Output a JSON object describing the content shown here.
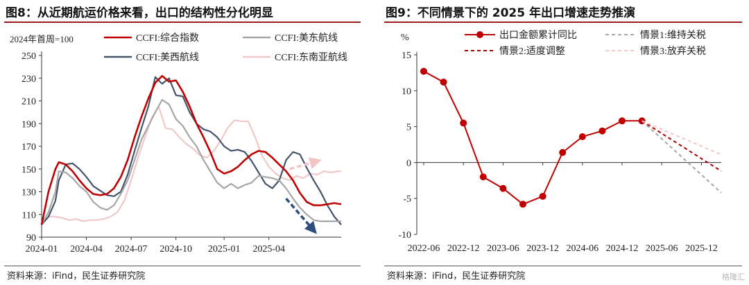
{
  "left": {
    "title": "图8：从近期航运价格来看，出口的结构性分化明显",
    "source": "资料来源：iFind，民生证券研究院",
    "chart_data": {
      "type": "line",
      "subtitle": "2024年首周=100",
      "ylim": [
        90,
        250
      ],
      "yticks": [
        90,
        110,
        130,
        150,
        170,
        190,
        210,
        230,
        250
      ],
      "xticks": [
        {
          "label": "2024-01",
          "t": 0
        },
        {
          "label": "2024-04",
          "t": 13
        },
        {
          "label": "2024-07",
          "t": 26
        },
        {
          "label": "2024-10",
          "t": 39
        },
        {
          "label": "2025-01",
          "t": 53
        },
        {
          "label": "2025-04",
          "t": 66
        }
      ],
      "x_unit": "weeks since first week of 2024",
      "legend_position": "top",
      "series": [
        {
          "name": "CCFI:综合指数",
          "color": "#c00000",
          "width": 2.6,
          "points": [
            [
              0,
              101
            ],
            [
              2,
              130
            ],
            [
              4,
              150
            ],
            [
              5,
              156
            ],
            [
              7,
              154
            ],
            [
              9,
              148
            ],
            [
              11,
              140
            ],
            [
              13,
              133
            ],
            [
              15,
              128
            ],
            [
              17,
              127
            ],
            [
              19,
              128
            ],
            [
              21,
              133
            ],
            [
              23,
              143
            ],
            [
              25,
              158
            ],
            [
              27,
              178
            ],
            [
              29,
              196
            ],
            [
              31,
              212
            ],
            [
              33,
              226
            ],
            [
              35,
              232
            ],
            [
              37,
              227
            ],
            [
              39,
              228
            ],
            [
              41,
              218
            ],
            [
              43,
              205
            ],
            [
              45,
              190
            ],
            [
              47,
              178
            ],
            [
              49,
              165
            ],
            [
              51,
              150
            ],
            [
              53,
              146
            ],
            [
              55,
              148
            ],
            [
              57,
              152
            ],
            [
              59,
              158
            ],
            [
              61,
              163
            ],
            [
              63,
              166
            ],
            [
              65,
              165
            ],
            [
              67,
              160
            ],
            [
              69,
              154
            ],
            [
              71,
              148
            ],
            [
              73,
              140
            ],
            [
              75,
              129
            ],
            [
              77,
              121
            ],
            [
              79,
              118
            ],
            [
              81,
              118
            ],
            [
              83,
              119
            ],
            [
              85,
              120
            ],
            [
              87,
              119
            ]
          ]
        },
        {
          "name": "CCFI:美东航线",
          "color": "#a6a6a6",
          "width": 2.2,
          "points": [
            [
              0,
              101
            ],
            [
              2,
              112
            ],
            [
              4,
              130
            ],
            [
              5,
              148
            ],
            [
              7,
              147
            ],
            [
              9,
              142
            ],
            [
              11,
              135
            ],
            [
              13,
              130
            ],
            [
              15,
              121
            ],
            [
              17,
              116
            ],
            [
              19,
              114
            ],
            [
              21,
              118
            ],
            [
              23,
              128
            ],
            [
              25,
              140
            ],
            [
              27,
              158
            ],
            [
              29,
              176
            ],
            [
              31,
              188
            ],
            [
              33,
              200
            ],
            [
              35,
              211
            ],
            [
              37,
              207
            ],
            [
              39,
              194
            ],
            [
              41,
              188
            ],
            [
              43,
              178
            ],
            [
              45,
              170
            ],
            [
              47,
              158
            ],
            [
              49,
              148
            ],
            [
              51,
              138
            ],
            [
              53,
              133
            ],
            [
              55,
              137
            ],
            [
              57,
              133
            ],
            [
              59,
              136
            ],
            [
              61,
              138
            ],
            [
              63,
              144
            ],
            [
              65,
              143
            ],
            [
              67,
              142
            ],
            [
              69,
              140
            ],
            [
              71,
              133
            ],
            [
              73,
              124
            ],
            [
              75,
              116
            ],
            [
              77,
              110
            ],
            [
              79,
              105
            ],
            [
              81,
              104
            ],
            [
              83,
              104
            ],
            [
              85,
              104
            ],
            [
              87,
              104
            ]
          ]
        },
        {
          "name": "CCFI:美西航线",
          "color": "#44546a",
          "width": 2.2,
          "points": [
            [
              0,
              101
            ],
            [
              2,
              108
            ],
            [
              4,
              122
            ],
            [
              5,
              140
            ],
            [
              7,
              154
            ],
            [
              9,
              155
            ],
            [
              11,
              150
            ],
            [
              13,
              143
            ],
            [
              15,
              135
            ],
            [
              17,
              131
            ],
            [
              19,
              127
            ],
            [
              21,
              126
            ],
            [
              23,
              130
            ],
            [
              25,
              145
            ],
            [
              27,
              166
            ],
            [
              29,
              186
            ],
            [
              31,
              205
            ],
            [
              33,
              231
            ],
            [
              35,
              225
            ],
            [
              37,
              230
            ],
            [
              39,
              215
            ],
            [
              41,
              214
            ],
            [
              43,
              200
            ],
            [
              45,
              190
            ],
            [
              47,
              185
            ],
            [
              49,
              183
            ],
            [
              51,
              178
            ],
            [
              53,
              170
            ],
            [
              55,
              166
            ],
            [
              57,
              167
            ],
            [
              59,
              165
            ],
            [
              61,
              157
            ],
            [
              63,
              147
            ],
            [
              65,
              137
            ],
            [
              67,
              133
            ],
            [
              69,
              140
            ],
            [
              71,
              158
            ],
            [
              73,
              165
            ],
            [
              75,
              163
            ],
            [
              77,
              151
            ],
            [
              79,
              140
            ],
            [
              81,
              130
            ],
            [
              83,
              118
            ],
            [
              85,
              108
            ],
            [
              87,
              101
            ]
          ]
        },
        {
          "name": "CCFI:东南亚航线",
          "color": "#f0c8c8",
          "width": 2.2,
          "points": [
            [
              0,
              101
            ],
            [
              2,
              108
            ],
            [
              4,
              108
            ],
            [
              6,
              107
            ],
            [
              8,
              105
            ],
            [
              10,
              106
            ],
            [
              12,
              104
            ],
            [
              14,
              105
            ],
            [
              16,
              105
            ],
            [
              18,
              106
            ],
            [
              20,
              108
            ],
            [
              22,
              112
            ],
            [
              24,
              122
            ],
            [
              26,
              140
            ],
            [
              28,
              160
            ],
            [
              30,
              178
            ],
            [
              32,
              195
            ],
            [
              34,
              205
            ],
            [
              36,
              186
            ],
            [
              38,
              185
            ],
            [
              40,
              178
            ],
            [
              42,
              172
            ],
            [
              44,
              168
            ],
            [
              46,
              162
            ],
            [
              48,
              160
            ],
            [
              50,
              166
            ],
            [
              52,
              175
            ],
            [
              54,
              186
            ],
            [
              56,
              193
            ],
            [
              58,
              192
            ],
            [
              60,
              192
            ],
            [
              62,
              178
            ],
            [
              64,
              162
            ],
            [
              66,
              152
            ],
            [
              68,
              146
            ],
            [
              70,
              142
            ],
            [
              72,
              140
            ],
            [
              74,
              144
            ],
            [
              76,
              142
            ],
            [
              78,
              146
            ],
            [
              80,
              145
            ],
            [
              82,
              148
            ],
            [
              84,
              147
            ],
            [
              86,
              148
            ],
            [
              87,
              148
            ]
          ]
        }
      ],
      "arrows": [
        {
          "color": "#f2c4c4",
          "from": [
            72,
            150
          ],
          "to": [
            80,
            157
          ]
        },
        {
          "color": "#2f4d7a",
          "from": [
            71,
            124
          ],
          "to": [
            79,
            96
          ]
        }
      ]
    }
  },
  "right": {
    "title": "图9：不同情景下的 2025 年出口增速走势推演",
    "source": "资料来源：iFind，民生证券研究院",
    "watermark": "格隆汇",
    "chart_data": {
      "type": "line",
      "subtitle": "%",
      "ylim": [
        -10,
        15
      ],
      "yticks": [
        -10,
        -5,
        0,
        5,
        10,
        15
      ],
      "xticks": [
        {
          "label": "2022-06",
          "t": 0
        },
        {
          "label": "2022-12",
          "t": 6
        },
        {
          "label": "2023-06",
          "t": 12
        },
        {
          "label": "2023-12",
          "t": 18
        },
        {
          "label": "2024-06",
          "t": 24
        },
        {
          "label": "2024-12",
          "t": 30
        },
        {
          "label": "2025-06",
          "t": 36
        },
        {
          "label": "2025-12",
          "t": 42
        }
      ],
      "x_unit": "months since 2022-06",
      "legend_position": "top",
      "series": [
        {
          "name": "出口金额累计同比",
          "color": "#c00000",
          "width": 2,
          "dash": "",
          "marker": true,
          "points": [
            [
              0,
              12.7
            ],
            [
              3,
              11.2
            ],
            [
              6,
              5.5
            ],
            [
              9,
              -2
            ],
            [
              12,
              -3.6
            ],
            [
              15,
              -5.8
            ],
            [
              18,
              -4.7
            ],
            [
              21,
              1.4
            ],
            [
              24,
              3.6
            ],
            [
              27,
              4.4
            ],
            [
              30,
              5.8
            ],
            [
              33,
              5.8
            ]
          ]
        },
        {
          "name": "情景1:维持关税",
          "color": "#a6a6a6",
          "width": 2,
          "dash": "5,4",
          "marker": false,
          "points": [
            [
              33,
              5.8
            ],
            [
              45,
              -4.2
            ]
          ]
        },
        {
          "name": "情景2:适度调整",
          "color": "#a80000",
          "width": 2,
          "dash": "5,4",
          "marker": false,
          "points": [
            [
              33,
              5.8
            ],
            [
              45,
              -1.2
            ]
          ]
        },
        {
          "name": "情景3:放弃关税",
          "color": "#f0c8c8",
          "width": 2,
          "dash": "5,4",
          "marker": false,
          "points": [
            [
              33,
              5.8
            ],
            [
              45,
              1.1
            ]
          ]
        }
      ]
    }
  }
}
